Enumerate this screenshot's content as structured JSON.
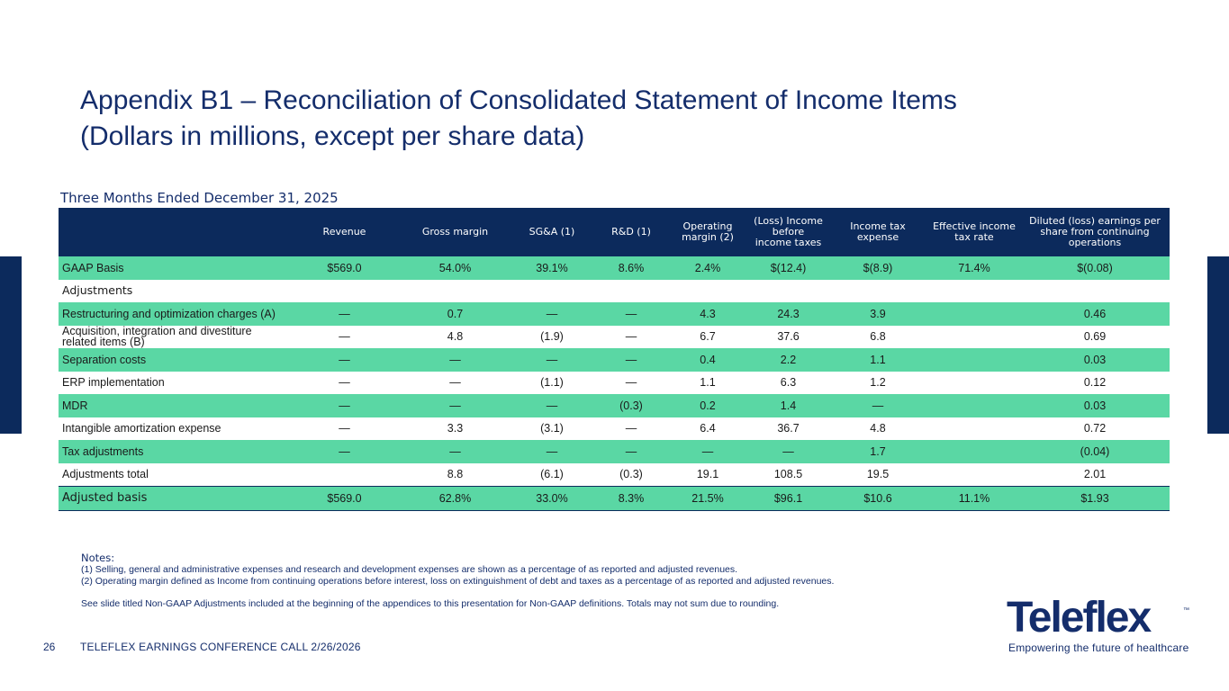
{
  "title": {
    "line1": "Appendix B1 – Reconciliation of Consolidated Statement of Income Items",
    "line2": "(Dollars in millions, except per share data)"
  },
  "period": "Three Months Ended December 31, 2025",
  "table": {
    "headers": [
      "",
      "Revenue",
      "Gross margin",
      "SG&A (1)",
      "R&D (1)",
      "Operating margin (2)",
      "(Loss) Income before income taxes",
      "Income tax expense",
      "Effective income tax rate",
      "Diluted (loss) earnings per share from continuing operations"
    ],
    "rows": [
      {
        "style": "green",
        "cells": [
          "GAAP Basis",
          "$569.0",
          "54.0%",
          "39.1%",
          "8.6%",
          "2.4%",
          "$(12.4)",
          "$(8.9)",
          "71.4%",
          "$(0.08)"
        ]
      },
      {
        "style": "section",
        "cells": [
          "Adjustments",
          "",
          "",
          "",
          "",
          "",
          "",
          "",
          "",
          ""
        ]
      },
      {
        "style": "green",
        "cells": [
          "Restructuring and optimization charges (A)",
          "—",
          "0.7",
          "—",
          "—",
          "4.3",
          "24.3",
          "3.9",
          "",
          "0.46"
        ]
      },
      {
        "style": "plain",
        "cells": [
          "Acquisition, integration and divestiture related items (B)",
          "—",
          "4.8",
          "(1.9)",
          "—",
          "6.7",
          "37.6",
          "6.8",
          "",
          "0.69"
        ]
      },
      {
        "style": "green",
        "cells": [
          "Separation costs",
          "—",
          "—",
          "—",
          "—",
          "0.4",
          "2.2",
          "1.1",
          "",
          "0.03"
        ]
      },
      {
        "style": "plain",
        "cells": [
          "ERP implementation",
          "—",
          "—",
          "(1.1)",
          "—",
          "1.1",
          "6.3",
          "1.2",
          "",
          "0.12"
        ]
      },
      {
        "style": "green",
        "cells": [
          "MDR",
          "—",
          "—",
          "—",
          "(0.3)",
          "0.2",
          "1.4",
          "—",
          "",
          "0.03"
        ]
      },
      {
        "style": "plain",
        "cells": [
          "Intangible amortization expense",
          "—",
          "3.3",
          "(3.1)",
          "—",
          "6.4",
          "36.7",
          "4.8",
          "",
          "0.72"
        ]
      },
      {
        "style": "green",
        "cells": [
          "Tax adjustments",
          "—",
          "—",
          "—",
          "—",
          "—",
          "—",
          "1.7",
          "",
          "(0.04)"
        ]
      },
      {
        "style": "plain",
        "cells": [
          "Adjustments total",
          "",
          "8.8",
          "(6.1)",
          "(0.3)",
          "19.1",
          "108.5",
          "19.5",
          "",
          "2.01"
        ]
      },
      {
        "style": "green adjusted",
        "cells": [
          "Adjusted basis",
          "$569.0",
          "62.8%",
          "33.0%",
          "8.3%",
          "21.5%",
          "$96.1",
          "$10.6",
          "11.1%",
          "$1.93"
        ]
      }
    ]
  },
  "notes": {
    "heading": "Notes:",
    "note1": "(1) Selling, general and administrative expenses and research and development expenses are shown as a percentage of as reported and adjusted revenues.",
    "note2": "(2) Operating margin defined as Income from continuing operations before interest, loss on extinguishment of debt and taxes as a percentage of as reported and adjusted revenues.",
    "see": "See slide titled Non-GAAP Adjustments included at the beginning of the appendices to this presentation for Non-GAAP definitions. Totals may not sum due to rounding."
  },
  "footer": {
    "page_number": "26",
    "conference": "TELEFLEX EARNINGS CONFERENCE CALL 2/26/2026"
  },
  "logo": {
    "name": "Teleflex",
    "tm": "™",
    "tagline": "Empowering the future of healthcare"
  },
  "colors": {
    "navy": "#0c2a5c",
    "title_blue": "#142d6b",
    "row_green": "#5ad7a4"
  }
}
